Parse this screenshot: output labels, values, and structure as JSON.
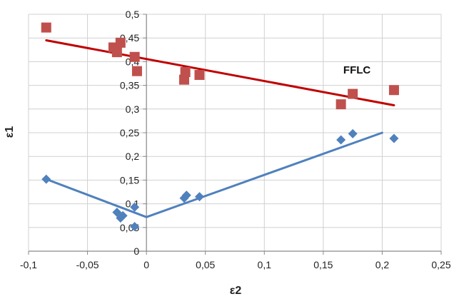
{
  "chart_data": {
    "type": "scatter",
    "xlabel": "ε2",
    "ylabel": "ε1",
    "xlim": [
      -0.1,
      0.25
    ],
    "ylim": [
      0,
      0.5
    ],
    "x_ticks": [
      -0.1,
      -0.05,
      0,
      0.05,
      0.1,
      0.15,
      0.2,
      0.25
    ],
    "y_ticks": [
      0,
      0.05,
      0.1,
      0.15,
      0.2,
      0.25,
      0.3,
      0.35,
      0.4,
      0.45,
      0.5
    ],
    "x_tick_labels": [
      "-0,1",
      "-0,05",
      "0",
      "0,05",
      "0,1",
      "0,15",
      "0,2",
      "0,25"
    ],
    "y_tick_labels": [
      "0",
      "0,05",
      "0,1",
      "0,15",
      "0,2",
      "0,25",
      "0,3",
      "0,35",
      "0,4",
      "0,45",
      "0,5"
    ],
    "grid": "horizontal and vertical major gridlines",
    "annotations": [
      {
        "text": "FFLC",
        "x": 0.167,
        "y": 0.375
      }
    ],
    "series": [
      {
        "marker": "square",
        "color": "#c0504d",
        "points": [
          [
            -0.085,
            0.472
          ],
          [
            -0.028,
            0.43
          ],
          [
            -0.025,
            0.42
          ],
          [
            -0.022,
            0.44
          ],
          [
            -0.01,
            0.41
          ],
          [
            -0.008,
            0.38
          ],
          [
            0.032,
            0.362
          ],
          [
            0.033,
            0.378
          ],
          [
            0.045,
            0.372
          ],
          [
            0.165,
            0.31
          ],
          [
            0.175,
            0.332
          ],
          [
            0.21,
            0.34
          ]
        ]
      },
      {
        "marker": "diamond",
        "color": "#4f81bd",
        "points": [
          [
            -0.085,
            0.152
          ],
          [
            -0.025,
            0.082
          ],
          [
            -0.022,
            0.07
          ],
          [
            -0.02,
            0.075
          ],
          [
            -0.01,
            0.093
          ],
          [
            -0.01,
            0.052
          ],
          [
            0.032,
            0.112
          ],
          [
            0.034,
            0.118
          ],
          [
            0.045,
            0.115
          ],
          [
            0.165,
            0.235
          ],
          [
            0.175,
            0.248
          ],
          [
            0.21,
            0.238
          ]
        ]
      }
    ],
    "trend_lines": [
      {
        "color": "#c00000",
        "points": [
          [
            -0.085,
            0.445
          ],
          [
            0.21,
            0.308
          ]
        ]
      },
      {
        "color": "#4f81bd",
        "points": [
          [
            -0.085,
            0.152
          ],
          [
            0,
            0.072
          ],
          [
            0.2,
            0.25
          ]
        ]
      }
    ]
  }
}
